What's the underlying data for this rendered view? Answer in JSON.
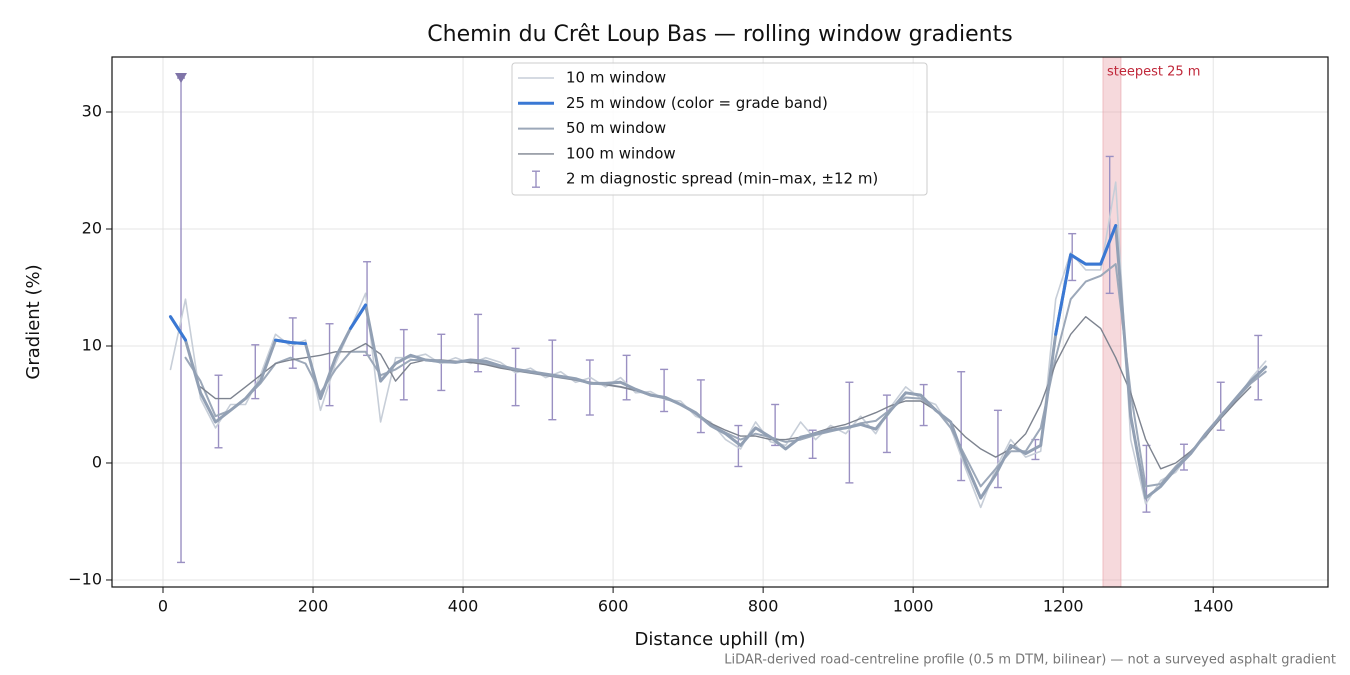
{
  "chart_data": {
    "type": "line",
    "title": "Chemin du Crêt Loup Bas — rolling window gradients",
    "x_label": "Distance uphill (m)",
    "y_label": "Gradient (%)",
    "footnote": "LiDAR-derived road-centreline profile (0.5 m DTM, bilinear) — not a surveyed asphalt gradient",
    "xlim": [
      -68,
      1553
    ],
    "ylim": [
      -10.6,
      34.7
    ],
    "xticks": [
      0,
      200,
      400,
      600,
      800,
      1000,
      1200,
      1400
    ],
    "yticks": [
      {
        "value": -10,
        "label": "−10"
      },
      0,
      10,
      20,
      30
    ],
    "grid": true,
    "legend": "upper center",
    "x": [
      10,
      30,
      50,
      70,
      90,
      110,
      130,
      150,
      170,
      190,
      210,
      230,
      250,
      270,
      290,
      310,
      330,
      350,
      370,
      390,
      410,
      430,
      450,
      470,
      490,
      510,
      530,
      550,
      570,
      590,
      610,
      630,
      650,
      670,
      690,
      710,
      730,
      750,
      770,
      790,
      810,
      830,
      850,
      870,
      890,
      910,
      930,
      950,
      970,
      990,
      1010,
      1030,
      1050,
      1070,
      1090,
      1110,
      1130,
      1150,
      1170,
      1190,
      1210,
      1230,
      1250,
      1270,
      1290,
      1310,
      1330,
      1350,
      1370,
      1390,
      1410,
      1430,
      1450,
      1470
    ],
    "series": [
      {
        "name": "10 m window",
        "color": "#c7ced8",
        "width": 1.6,
        "values": [
          8,
          14,
          5.5,
          3,
          5,
          5,
          7.5,
          11,
          10,
          10.5,
          4.5,
          8.5,
          11.5,
          14.5,
          3.5,
          9,
          9,
          9.3,
          8.5,
          9,
          8.5,
          9,
          8.6,
          7.7,
          8.1,
          7.3,
          7.8,
          6.9,
          7.3,
          6.5,
          7.3,
          6.0,
          6.1,
          5.4,
          5.3,
          4.0,
          3.5,
          2.0,
          1.2,
          3.5,
          1.8,
          1.5,
          3.5,
          2.0,
          3.2,
          2.5,
          4.0,
          2.5,
          4.8,
          6.5,
          5.5,
          5.0,
          3.0,
          -0.5,
          -3.8,
          -0.5,
          2.0,
          0.5,
          1.0,
          14,
          18,
          16.5,
          16.5,
          24,
          2,
          -3.5,
          -1.5,
          -0.8,
          1.0,
          2.2,
          4.2,
          5.3,
          7.2,
          8.7
        ]
      },
      {
        "name": "25 m window (color = grade band)",
        "color": "#3a78d4",
        "width": 3,
        "grade_bands": [
          {
            "min": null,
            "color": "#92a0b4"
          },
          {
            "min": 10,
            "color": "#3a78d4"
          },
          {
            "min": 20,
            "color": "#e8891a"
          }
        ],
        "values": [
          12.5,
          10.5,
          6,
          3.5,
          4.5,
          5.5,
          7,
          10.5,
          10.3,
          10.2,
          5.5,
          9,
          11.5,
          13.5,
          7,
          8.5,
          9.2,
          8.8,
          8.7,
          8.6,
          8.8,
          8.7,
          8.3,
          8.0,
          7.8,
          7.6,
          7.4,
          7.2,
          6.8,
          6.8,
          6.9,
          6.3,
          5.8,
          5.6,
          5.0,
          4.3,
          3.2,
          2.5,
          1.5,
          3.0,
          2.2,
          1.2,
          2.2,
          2.5,
          2.8,
          3.0,
          3.3,
          2.9,
          4.5,
          6.0,
          5.8,
          4.5,
          3.5,
          0,
          -3.0,
          -1,
          1.5,
          0.8,
          1.5,
          11,
          17.8,
          17.0,
          17.0,
          20.3,
          4,
          -3.0,
          -2.0,
          -0.5,
          0.8,
          2.5,
          4.0,
          5.5,
          7.0,
          8.2
        ]
      },
      {
        "name": "50 m window",
        "color": "#9ca8b9",
        "width": 2,
        "values": [
          null,
          9,
          7,
          4,
          4.5,
          5.5,
          6.8,
          8.5,
          9,
          8.5,
          6,
          8,
          9.5,
          9.5,
          7.5,
          8,
          8.8,
          8.8,
          8.6,
          8.6,
          8.7,
          8.5,
          8.2,
          7.9,
          7.7,
          7.5,
          7.3,
          7.1,
          6.8,
          6.7,
          6.5,
          6.2,
          5.8,
          5.5,
          5.0,
          4.2,
          3.3,
          2.6,
          2.0,
          2.5,
          2.2,
          1.8,
          2.0,
          2.4,
          2.7,
          3.0,
          3.4,
          3.6,
          4.6,
          5.6,
          5.5,
          4.6,
          3.0,
          0.5,
          -2.0,
          -0.5,
          1.0,
          1.0,
          3,
          9,
          14,
          15.5,
          16,
          17,
          6,
          -2,
          -1.8,
          -0.3,
          0.9,
          2.4,
          3.9,
          5.4,
          6.8,
          7.8
        ]
      },
      {
        "name": "100 m window",
        "color": "#7d838f",
        "width": 1.4,
        "values": [
          null,
          null,
          6.5,
          5.5,
          5.5,
          6.5,
          7.5,
          8.5,
          8.8,
          9.0,
          9.2,
          9.5,
          9.5,
          10.2,
          9.3,
          7,
          8.5,
          8.8,
          8.8,
          8.7,
          8.6,
          8.4,
          8.1,
          7.9,
          7.7,
          7.5,
          7.3,
          7.1,
          6.9,
          6.7,
          6.5,
          6.2,
          5.9,
          5.5,
          5.0,
          4.3,
          3.4,
          2.8,
          2.3,
          2.3,
          2.0,
          2.0,
          2.2,
          2.6,
          3.0,
          3.3,
          3.8,
          4.3,
          4.9,
          5.3,
          5.3,
          4.5,
          3.5,
          2.2,
          1.2,
          0.5,
          1.2,
          2.5,
          5.0,
          8.5,
          11,
          12.5,
          11.5,
          9,
          6,
          2,
          -0.5,
          0,
          1.0,
          2.3,
          3.8,
          5.2,
          6.5,
          null
        ]
      }
    ],
    "spread": {
      "name": "2 m diagnostic spread (min–max, ±12 m)",
      "color": "#9a90c2",
      "x": [
        24,
        74,
        123,
        173,
        222,
        272,
        321,
        371,
        420,
        470,
        519,
        569,
        618,
        668,
        717,
        767,
        816,
        866,
        915,
        965,
        1014,
        1064,
        1113,
        1163,
        1212,
        1262,
        1311,
        1361,
        1410,
        1460
      ],
      "low": [
        -8.5,
        1.3,
        5.5,
        8.1,
        4.9,
        9.2,
        5.4,
        6.2,
        7.8,
        4.9,
        3.7,
        4.1,
        5.4,
        4.4,
        2.6,
        -0.3,
        1.5,
        0.4,
        -1.7,
        0.9,
        3.2,
        -1.5,
        -2.1,
        0.3,
        15.6,
        14.5,
        -4.2,
        -0.6,
        2.8,
        5.4
      ],
      "high": [
        32.9,
        7.5,
        10.1,
        12.4,
        11.9,
        17.2,
        11.4,
        11.0,
        12.7,
        9.8,
        10.5,
        8.8,
        9.2,
        8.0,
        7.1,
        3.2,
        5.0,
        2.8,
        6.9,
        5.8,
        6.7,
        7.8,
        4.5,
        2.0,
        19.6,
        26.2,
        1.5,
        1.6,
        6.9,
        10.9
      ]
    },
    "highlight": {
      "x": [
        1253,
        1277
      ],
      "color": "#e8a0a8",
      "label": "steepest 25 m"
    }
  }
}
